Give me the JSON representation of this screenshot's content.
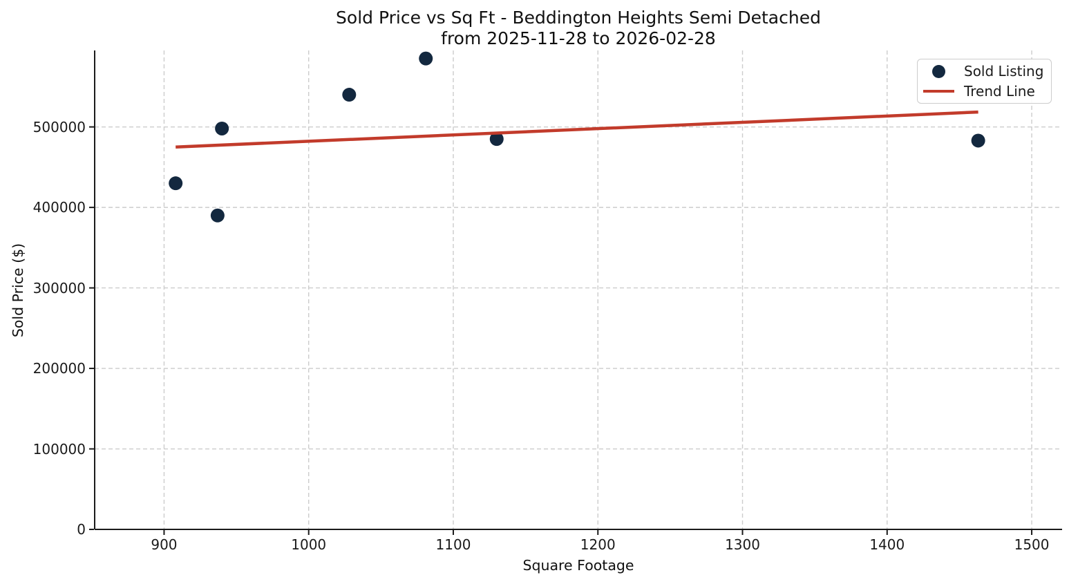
{
  "chart_data": {
    "type": "scatter",
    "title": "Sold Price vs Sq Ft - Beddington Heights Semi Detached",
    "subtitle": "from 2025-11-28 to 2026-02-28",
    "xlabel": "Square Footage",
    "ylabel": "Sold Price ($)",
    "xlim": [
      852,
      1521
    ],
    "ylim": [
      0,
      595000
    ],
    "xticks": [
      900,
      1000,
      1100,
      1200,
      1300,
      1400,
      1500
    ],
    "yticks": [
      0,
      100000,
      200000,
      300000,
      400000,
      500000
    ],
    "grid": true,
    "grid_style": "dashed",
    "legend_position": "upper-right",
    "series": [
      {
        "name": "Sold Listing",
        "type": "scatter",
        "color": "#13283f",
        "x": [
          908,
          937,
          940,
          1028,
          1081,
          1130,
          1463
        ],
        "y": [
          430000,
          390000,
          498000,
          540000,
          585000,
          485000,
          483000
        ]
      },
      {
        "name": "Trend Line",
        "type": "line",
        "color": "#c23b2b",
        "x": [
          908,
          1463
        ],
        "y": [
          475000,
          518500
        ]
      }
    ],
    "colors": {
      "grid": "#cccccc",
      "axis": "#1a1a1a",
      "text": "#1a1a1a",
      "background": "#ffffff"
    }
  }
}
